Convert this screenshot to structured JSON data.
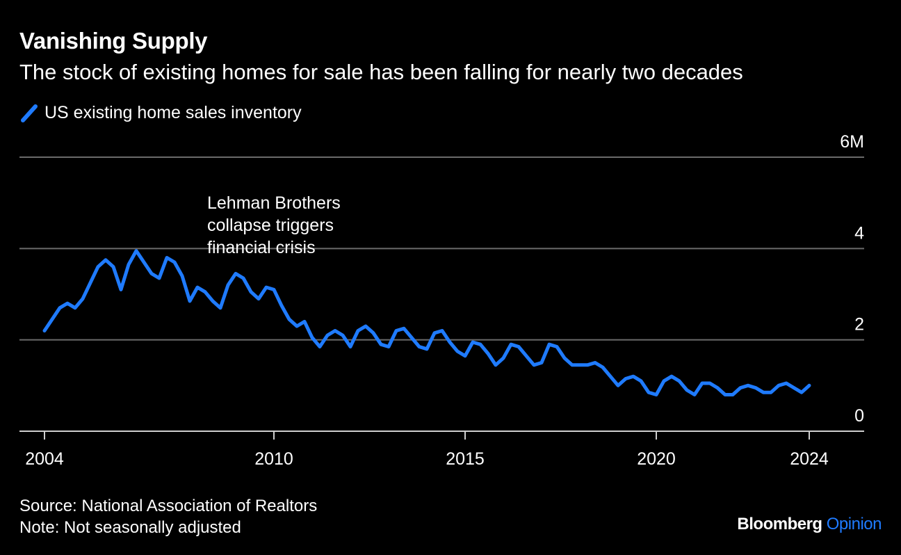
{
  "header": {
    "title": "Vanishing Supply",
    "subtitle": "The stock of existing homes for sale has been falling for nearly two decades"
  },
  "footer": {
    "source": "Source: National Association of Realtors",
    "note": "Note: Not seasonally adjusted",
    "brand_main": "Bloomberg",
    "brand_accent": "Opinion"
  },
  "colors": {
    "series": "#1f7bff",
    "grid": "#6b6b6b",
    "text": "#ffffff",
    "background": "#000000"
  },
  "chart_data": {
    "type": "line",
    "title": "Vanishing Supply",
    "subtitle": "The stock of existing homes for sale has been falling for nearly two decades",
    "y_unit_label": "6M",
    "ylim": [
      0,
      6
    ],
    "y_ticks": [
      0,
      2,
      4,
      6
    ],
    "y_tick_labels": [
      "0",
      "2",
      "4",
      "6M"
    ],
    "x_ticks": [
      2004,
      2010,
      2015,
      2020,
      2024
    ],
    "x_tick_labels": [
      "2004",
      "2010",
      "2015",
      "2020",
      "2024"
    ],
    "xlim": [
      2003.4,
      2025.3
    ],
    "grid": true,
    "legend_position": "top-left",
    "series": [
      {
        "name": "US existing home sales inventory",
        "color": "#1f7bff",
        "x": [
          2004.0,
          2004.2,
          2004.4,
          2004.6,
          2004.8,
          2005.0,
          2005.2,
          2005.4,
          2005.6,
          2005.8,
          2006.0,
          2006.2,
          2006.4,
          2006.6,
          2006.8,
          2007.0,
          2007.2,
          2007.4,
          2007.6,
          2007.8,
          2008.0,
          2008.2,
          2008.4,
          2008.6,
          2008.8,
          2009.0,
          2009.2,
          2009.4,
          2009.6,
          2009.8,
          2010.0,
          2010.2,
          2010.4,
          2010.6,
          2010.8,
          2011.0,
          2011.2,
          2011.4,
          2011.6,
          2011.8,
          2012.0,
          2012.2,
          2012.4,
          2012.6,
          2012.8,
          2013.0,
          2013.2,
          2013.4,
          2013.6,
          2013.8,
          2014.0,
          2014.2,
          2014.4,
          2014.6,
          2014.8,
          2015.0,
          2015.2,
          2015.4,
          2015.6,
          2015.8,
          2016.0,
          2016.2,
          2016.4,
          2016.6,
          2016.8,
          2017.0,
          2017.2,
          2017.4,
          2017.6,
          2017.8,
          2018.0,
          2018.2,
          2018.4,
          2018.6,
          2018.8,
          2019.0,
          2019.2,
          2019.4,
          2019.6,
          2019.8,
          2020.0,
          2020.2,
          2020.4,
          2020.6,
          2020.8,
          2021.0,
          2021.2,
          2021.4,
          2021.6,
          2021.8,
          2022.0,
          2022.2,
          2022.4,
          2022.6,
          2022.8,
          2023.0,
          2023.2,
          2023.4,
          2023.6,
          2023.8,
          2024.0
        ],
        "values": [
          2.2,
          2.45,
          2.7,
          2.8,
          2.7,
          2.9,
          3.25,
          3.6,
          3.75,
          3.6,
          3.1,
          3.65,
          3.95,
          3.7,
          3.45,
          3.35,
          3.8,
          3.7,
          3.4,
          2.85,
          3.15,
          3.05,
          2.85,
          2.7,
          3.2,
          3.45,
          3.35,
          3.05,
          2.9,
          3.15,
          3.1,
          2.75,
          2.45,
          2.3,
          2.4,
          2.05,
          1.85,
          2.1,
          2.2,
          2.1,
          1.85,
          2.2,
          2.3,
          2.15,
          1.9,
          1.85,
          2.2,
          2.25,
          2.05,
          1.85,
          1.8,
          2.15,
          2.2,
          1.95,
          1.75,
          1.65,
          1.95,
          1.9,
          1.7,
          1.45,
          1.6,
          1.9,
          1.85,
          1.65,
          1.45,
          1.5,
          1.9,
          1.85,
          1.6,
          1.45,
          1.45,
          1.45,
          1.5,
          1.4,
          1.2,
          1.0,
          1.15,
          1.2,
          1.1,
          0.85,
          0.8,
          1.1,
          1.2,
          1.1,
          0.9,
          0.8,
          1.05,
          1.05,
          0.95,
          0.8,
          0.8,
          0.95,
          1.0,
          0.95,
          0.85,
          0.85,
          1.0,
          1.05,
          0.95,
          0.85,
          1.0
        ]
      }
    ],
    "annotations": [
      {
        "lines": [
          "Lehman Brothers",
          "collapse triggers",
          "financial crisis"
        ],
        "x": 2008.7,
        "y": 4.0
      }
    ]
  }
}
